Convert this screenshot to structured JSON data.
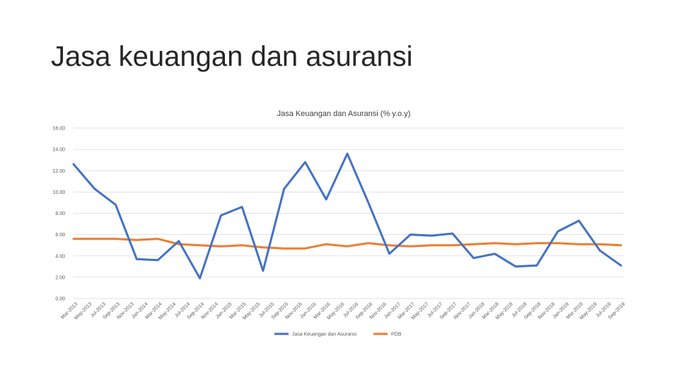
{
  "slide": {
    "title": "Jasa keuangan dan asuransi"
  },
  "chart_data": {
    "type": "line",
    "title": "Jasa Keuangan dan Asuransi (% y.o.y)",
    "ylim": [
      0,
      16
    ],
    "y_ticks": [
      "0.00",
      "2.00",
      "4.00",
      "6.00",
      "8.00",
      "10.00",
      "12.00",
      "14.00",
      "16.00"
    ],
    "grid": true,
    "legend_position": "bottom",
    "categories": [
      "Mar-2013",
      "May-2013",
      "Jul-2013",
      "Sep-2013",
      "Nov-2013",
      "Jan-2014",
      "Mar-2014",
      "May-2014",
      "Jul-2014",
      "Sep-2014",
      "Nov-2014",
      "Jan-2015",
      "Mar-2015",
      "May-2015",
      "Jul-2015",
      "Sep-2015",
      "Nov-2015",
      "Jan-2016",
      "Mar-2016",
      "May-2016",
      "Jul-2016",
      "Sep-2016",
      "Nov-2016",
      "Jan-2017",
      "Mar-2017",
      "May-2017",
      "Jul-2017",
      "Sep-2017",
      "Nov-2017",
      "Jan-2018",
      "Mar-2018",
      "May-2018",
      "Jul-2018",
      "Sep-2018",
      "Nov-2018",
      "Jan-2019",
      "Mar-2019",
      "May-2019",
      "Jul-2019",
      "Sep-2019"
    ],
    "series": [
      {
        "name": "Jasa Keuangan dan Asuransi",
        "color": "#4472C4",
        "points": [
          [
            0,
            12.6
          ],
          [
            2,
            10.3
          ],
          [
            4,
            8.8
          ],
          [
            6,
            3.7
          ],
          [
            8,
            3.6
          ],
          [
            10,
            5.4
          ],
          [
            12,
            1.9
          ],
          [
            14,
            7.8
          ],
          [
            16,
            8.6
          ],
          [
            18,
            2.6
          ],
          [
            20,
            10.3
          ],
          [
            22,
            12.8
          ],
          [
            24,
            9.3
          ],
          [
            26,
            13.6
          ],
          [
            28,
            9.0
          ],
          [
            30,
            4.2
          ],
          [
            32,
            6.0
          ],
          [
            34,
            5.9
          ],
          [
            36,
            6.1
          ],
          [
            38,
            3.8
          ],
          [
            40,
            4.2
          ],
          [
            42,
            3.0
          ],
          [
            44,
            3.1
          ],
          [
            46,
            6.3
          ],
          [
            48,
            7.3
          ],
          [
            50,
            4.5
          ],
          [
            52,
            3.1
          ]
        ]
      },
      {
        "name": "PDB",
        "color": "#ED7D31",
        "points": [
          [
            0,
            5.6
          ],
          [
            2,
            5.6
          ],
          [
            4,
            5.6
          ],
          [
            6,
            5.5
          ],
          [
            8,
            5.6
          ],
          [
            10,
            5.1
          ],
          [
            12,
            5.0
          ],
          [
            14,
            4.9
          ],
          [
            16,
            5.0
          ],
          [
            18,
            4.8
          ],
          [
            20,
            4.7
          ],
          [
            22,
            4.7
          ],
          [
            24,
            5.1
          ],
          [
            26,
            4.9
          ],
          [
            28,
            5.2
          ],
          [
            30,
            5.0
          ],
          [
            32,
            4.9
          ],
          [
            34,
            5.0
          ],
          [
            36,
            5.0
          ],
          [
            38,
            5.1
          ],
          [
            40,
            5.2
          ],
          [
            42,
            5.1
          ],
          [
            44,
            5.2
          ],
          [
            46,
            5.2
          ],
          [
            48,
            5.1
          ],
          [
            50,
            5.1
          ],
          [
            52,
            5.0
          ]
        ]
      }
    ]
  }
}
